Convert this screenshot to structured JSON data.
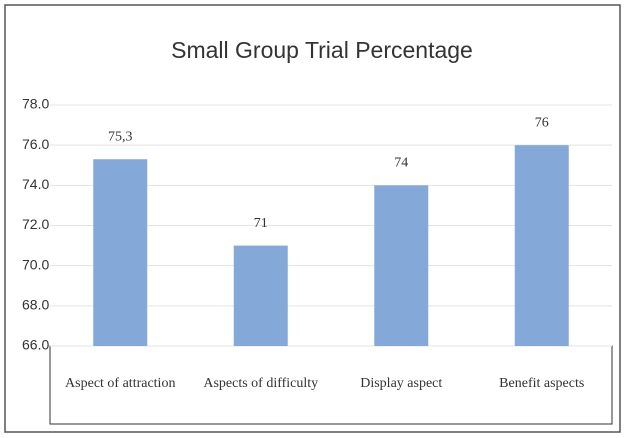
{
  "chart_data": {
    "type": "bar",
    "title": "Small Group Trial Percentage",
    "categories": [
      "Aspect of attraction",
      "Aspects of difficulty",
      "Display aspect",
      "Benefit aspects"
    ],
    "values": [
      75.3,
      71,
      74,
      76
    ],
    "value_labels": [
      "75,3",
      "71",
      "74",
      "76"
    ],
    "color": "#84a9d8",
    "ylim": [
      66,
      78
    ],
    "yticks": [
      {
        "value": 66,
        "label": "66.0"
      },
      {
        "value": 68,
        "label": "68.0"
      },
      {
        "value": 70,
        "label": "70.0"
      },
      {
        "value": 72,
        "label": "72.0"
      },
      {
        "value": 74,
        "label": "74.0"
      },
      {
        "value": 76,
        "label": "76.0"
      },
      {
        "value": 78,
        "label": "78.0"
      }
    ],
    "grid": true
  }
}
